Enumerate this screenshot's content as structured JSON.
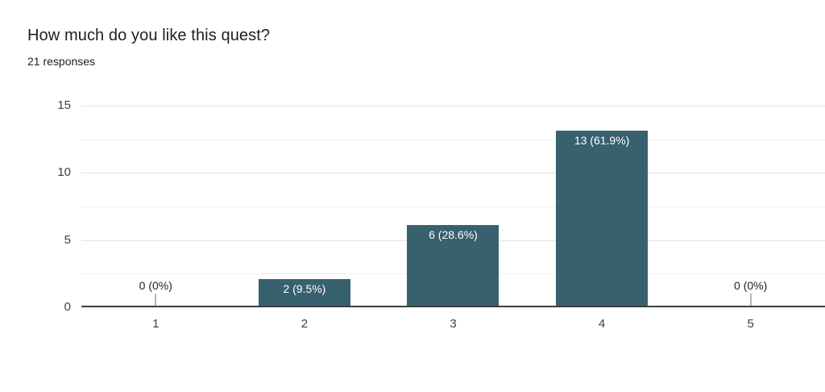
{
  "header": {
    "title": "How much do you like this quest?",
    "subtitle": "21 responses"
  },
  "chart_data": {
    "type": "bar",
    "title": "How much do you like this quest?",
    "subtitle": "21 responses",
    "total_responses": 21,
    "categories": [
      "1",
      "2",
      "3",
      "4",
      "5"
    ],
    "values": [
      0,
      2,
      6,
      13,
      0
    ],
    "percentages": [
      0,
      9.5,
      28.6,
      61.9,
      0
    ],
    "labels": [
      "0 (0%)",
      "2 (9.5%)",
      "6 (28.6%)",
      "13 (61.9%)",
      "0 (0%)"
    ],
    "xlabel": "",
    "ylabel": "",
    "ylim": [
      0,
      15
    ],
    "yticks": [
      0,
      5,
      10,
      15
    ],
    "grid_step": 2.5,
    "ytick_step": 5,
    "grid": true,
    "legend": "none",
    "colors": {
      "bar": "#38616F",
      "bar_label": "#ffffff",
      "zero_label": "#212121",
      "axis_label": "#3c4043",
      "baseline": "#3e3e3e",
      "gridline_major": "#e2e2e2",
      "gridline_minor": "#efefef",
      "stem": "#b7b7b7",
      "background": "#ffffff"
    }
  }
}
